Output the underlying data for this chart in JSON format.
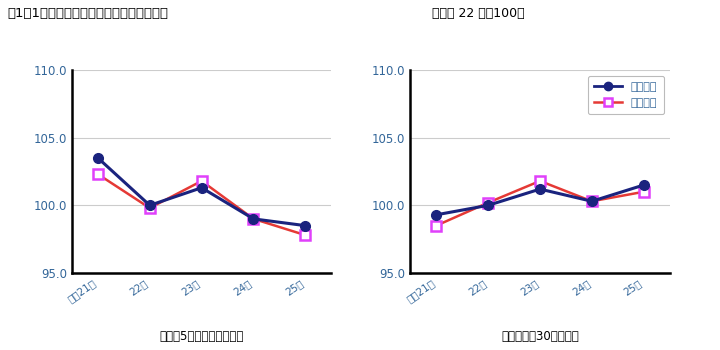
{
  "title_left": "図1－1　賌金指数（現金給与総額）の推移",
  "title_right": "（平成 22 年＝100）",
  "xlabel_left_final": "《規模5人以上全事業所》",
  "xlabel_right": "《うち規模30人以上》",
  "x_labels": [
    "平成21年",
    "22年",
    "23年",
    "24年",
    "25年"
  ],
  "left_nominal": [
    103.5,
    100.0,
    101.3,
    99.0,
    98.5
  ],
  "left_real": [
    102.3,
    99.8,
    101.8,
    99.0,
    97.8
  ],
  "right_nominal": [
    99.3,
    100.0,
    101.2,
    100.3,
    101.5
  ],
  "right_real": [
    98.5,
    100.2,
    101.8,
    100.3,
    101.0
  ],
  "ylim": [
    95.0,
    110.0
  ],
  "yticks": [
    95.0,
    100.0,
    105.0,
    110.0
  ],
  "nominal_color": "#1a237e",
  "real_color": "#e53935",
  "real_marker_color": "#e040fb",
  "grid_color": "#cccccc",
  "text_color": "#336699",
  "title_color": "#000000",
  "legend_nominal": "名目指数",
  "legend_real": "実質指数"
}
